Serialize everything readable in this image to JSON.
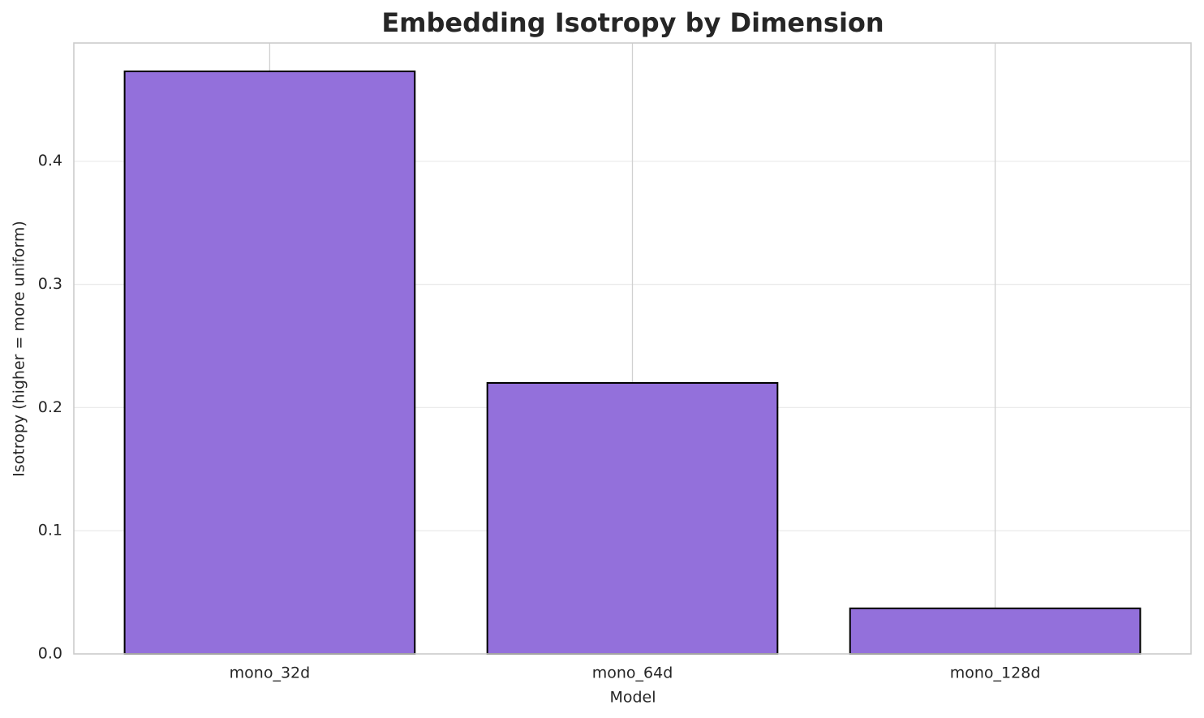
{
  "chart_data": {
    "type": "bar",
    "title": "Embedding Isotropy by Dimension",
    "x_label": "Model",
    "y_label": "Isotropy (higher = more uniform)",
    "categories": [
      "mono_32d",
      "mono_64d",
      "mono_128d"
    ],
    "values": [
      0.473,
      0.22,
      0.037
    ],
    "color": "#9370db",
    "edge_color": "#000000",
    "ylim": [
      0,
      0.496
    ],
    "yticks": [
      {
        "value": 0,
        "label": "0.0"
      },
      0.1,
      0.2,
      0.3,
      0.4
    ],
    "grid": true
  }
}
